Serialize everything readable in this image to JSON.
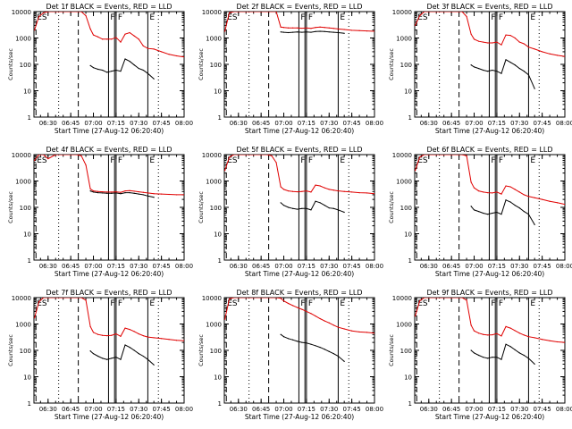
{
  "figure": {
    "background": "#ffffff",
    "axis_color": "#000000"
  },
  "common": {
    "xlabel": "Start Time (27-Aug-12 06:20:40)",
    "ylabel": "Counts/sec",
    "xticks": [
      "06:30",
      "06:45",
      "07:00",
      "07:15",
      "07:30",
      "07:45",
      "08:00"
    ],
    "yticks": [
      "1",
      "10",
      "100",
      "1000",
      "10000"
    ],
    "ylim": [
      1,
      10000
    ],
    "y_scale": "log",
    "xlim": [
      "06:20:40",
      "08:00"
    ],
    "marker_labels": [
      "ES",
      "F",
      "F",
      "E"
    ]
  },
  "chart_data": [
    {
      "type": "line",
      "title": "Det 1f BLACK = Events, RED = LLD",
      "x": [
        "06:21",
        "06:24",
        "06:27",
        "06:30",
        "06:35",
        "06:40",
        "06:45",
        "06:49",
        "06:52",
        "06:55",
        "06:58",
        "07:00",
        "07:03",
        "07:06",
        "07:09",
        "07:12",
        "07:15",
        "07:18",
        "07:21",
        "07:24",
        "07:27",
        "07:30",
        "07:33",
        "07:36",
        "07:40",
        "07:45",
        "07:50",
        "07:55",
        "08:00"
      ],
      "series": [
        {
          "name": "BLACK = Events",
          "color": "#000000",
          "values": [
            null,
            null,
            null,
            null,
            null,
            null,
            null,
            null,
            null,
            null,
            90,
            75,
            65,
            60,
            50,
            55,
            60,
            55,
            160,
            130,
            95,
            70,
            60,
            45,
            28,
            null,
            null,
            null,
            null
          ]
        },
        {
          "name": "RED = LLD",
          "color": "#e00000",
          "values": [
            2000,
            6500,
            9000,
            10000,
            10000,
            10000,
            10000,
            10000,
            10000,
            7000,
            2200,
            1300,
            1100,
            900,
            900,
            900,
            1050,
            700,
            1400,
            1600,
            1200,
            900,
            500,
            400,
            380,
            300,
            240,
            210,
            190
          ]
        }
      ],
      "vlines_dashed": [
        "06:22",
        "06:50"
      ],
      "vlines_dotted": [
        "06:37",
        "07:43"
      ],
      "vlines_solid": [
        "07:10",
        "07:14",
        "07:15",
        "07:36"
      ]
    },
    {
      "type": "line",
      "title": "Det 2f BLACK = Events, RED = LLD",
      "x": [
        "06:21",
        "06:24",
        "06:27",
        "06:30",
        "06:35",
        "06:40",
        "06:45",
        "06:49",
        "06:52",
        "06:55",
        "06:58",
        "07:00",
        "07:03",
        "07:06",
        "07:09",
        "07:12",
        "07:15",
        "07:18",
        "07:21",
        "07:24",
        "07:27",
        "07:30",
        "07:33",
        "07:36",
        "07:40",
        "07:45",
        "07:50",
        "07:55",
        "08:00"
      ],
      "series": [
        {
          "name": "BLACK = Events",
          "color": "#000000",
          "values": [
            null,
            null,
            null,
            null,
            null,
            null,
            null,
            null,
            null,
            null,
            1700,
            1650,
            1600,
            1650,
            1700,
            1650,
            1700,
            1650,
            1750,
            1800,
            1750,
            1700,
            1650,
            1600,
            1500,
            null,
            null,
            null,
            null
          ]
        },
        {
          "name": "RED = LLD",
          "color": "#e00000",
          "values": [
            1800,
            9000,
            10000,
            10000,
            10000,
            10000,
            10000,
            10000,
            10000,
            10000,
            2600,
            2500,
            2400,
            2400,
            2400,
            2350,
            2400,
            2300,
            2500,
            2600,
            2500,
            2400,
            2300,
            2200,
            2100,
            1950,
            1900,
            1850,
            1800
          ]
        }
      ],
      "vlines_dashed": [
        "06:22",
        "06:50"
      ],
      "vlines_dotted": [
        "06:37",
        "07:43"
      ],
      "vlines_solid": [
        "07:10",
        "07:14",
        "07:15",
        "07:36"
      ]
    },
    {
      "type": "line",
      "title": "Det 3f BLACK = Events, RED = LLD",
      "x": [
        "06:21",
        "06:24",
        "06:27",
        "06:30",
        "06:35",
        "06:40",
        "06:45",
        "06:49",
        "06:52",
        "06:55",
        "06:58",
        "07:00",
        "07:03",
        "07:06",
        "07:09",
        "07:12",
        "07:15",
        "07:18",
        "07:21",
        "07:24",
        "07:27",
        "07:30",
        "07:33",
        "07:36",
        "07:40",
        "07:45",
        "07:50",
        "07:55",
        "08:00"
      ],
      "series": [
        {
          "name": "BLACK = Events",
          "color": "#000000",
          "values": [
            null,
            null,
            null,
            null,
            null,
            null,
            null,
            null,
            null,
            null,
            95,
            80,
            70,
            60,
            55,
            60,
            55,
            45,
            150,
            120,
            95,
            70,
            55,
            40,
            12,
            null,
            null,
            null,
            null
          ]
        },
        {
          "name": "RED = LLD",
          "color": "#e00000",
          "values": [
            3000,
            7000,
            10000,
            10000,
            10000,
            10000,
            10000,
            10000,
            10000,
            6500,
            1400,
            900,
            750,
            700,
            650,
            650,
            700,
            550,
            1300,
            1250,
            1000,
            700,
            600,
            450,
            380,
            300,
            250,
            220,
            200
          ]
        }
      ],
      "vlines_dashed": [
        "06:22",
        "06:50"
      ],
      "vlines_dotted": [
        "06:37",
        "07:43"
      ],
      "vlines_solid": [
        "07:10",
        "07:14",
        "07:15",
        "07:36"
      ]
    },
    {
      "type": "line",
      "title": "Det 4f BLACK = Events, RED = LLD",
      "x": [
        "06:21",
        "06:24",
        "06:27",
        "06:30",
        "06:35",
        "06:40",
        "06:45",
        "06:49",
        "06:52",
        "06:55",
        "06:58",
        "07:00",
        "07:03",
        "07:06",
        "07:09",
        "07:12",
        "07:15",
        "07:18",
        "07:21",
        "07:24",
        "07:27",
        "07:30",
        "07:33",
        "07:36",
        "07:40",
        "07:45",
        "07:50",
        "07:55",
        "08:00"
      ],
      "series": [
        {
          "name": "BLACK = Events",
          "color": "#000000",
          "values": [
            null,
            null,
            null,
            null,
            null,
            null,
            null,
            null,
            null,
            null,
            420,
            380,
            360,
            350,
            340,
            340,
            350,
            330,
            360,
            360,
            340,
            320,
            300,
            270,
            240,
            null,
            null,
            null,
            null
          ]
        },
        {
          "name": "RED = LLD",
          "color": "#e00000",
          "values": [
            6000,
            10000,
            10000,
            7000,
            10000,
            10000,
            10000,
            10000,
            9000,
            4000,
            500,
            420,
            400,
            390,
            380,
            380,
            390,
            370,
            420,
            430,
            410,
            390,
            370,
            350,
            330,
            320,
            310,
            300,
            300
          ]
        }
      ],
      "vlines_dashed": [
        "06:22",
        "06:50"
      ],
      "vlines_dotted": [
        "06:37",
        "07:43"
      ],
      "vlines_solid": [
        "07:10",
        "07:14",
        "07:15",
        "07:36"
      ]
    },
    {
      "type": "line",
      "title": "Det 5f BLACK = Events, RED = LLD",
      "x": [
        "06:21",
        "06:24",
        "06:27",
        "06:30",
        "06:35",
        "06:40",
        "06:45",
        "06:49",
        "06:52",
        "06:55",
        "06:58",
        "07:00",
        "07:03",
        "07:06",
        "07:09",
        "07:12",
        "07:15",
        "07:18",
        "07:21",
        "07:24",
        "07:27",
        "07:30",
        "07:33",
        "07:36",
        "07:40",
        "07:45",
        "07:50",
        "07:55",
        "08:00"
      ],
      "series": [
        {
          "name": "BLACK = Events",
          "color": "#000000",
          "values": [
            null,
            null,
            null,
            null,
            null,
            null,
            null,
            null,
            null,
            null,
            150,
            120,
            100,
            90,
            85,
            90,
            90,
            80,
            170,
            150,
            120,
            95,
            90,
            80,
            65,
            null,
            null,
            null,
            null
          ]
        },
        {
          "name": "RED = LLD",
          "color": "#e00000",
          "values": [
            2500,
            8000,
            10000,
            10000,
            10000,
            10000,
            10000,
            10000,
            9000,
            5000,
            600,
            480,
            420,
            400,
            390,
            400,
            420,
            380,
            700,
            650,
            550,
            480,
            450,
            420,
            400,
            380,
            360,
            350,
            330
          ]
        }
      ],
      "vlines_dashed": [
        "06:22",
        "06:50"
      ],
      "vlines_dotted": [
        "06:37",
        "07:43"
      ],
      "vlines_solid": [
        "07:10",
        "07:14",
        "07:15",
        "07:36"
      ]
    },
    {
      "type": "line",
      "title": "Det 6f BLACK = Events, RED = LLD",
      "x": [
        "06:21",
        "06:24",
        "06:27",
        "06:30",
        "06:35",
        "06:40",
        "06:45",
        "06:49",
        "06:52",
        "06:55",
        "06:58",
        "07:00",
        "07:03",
        "07:06",
        "07:09",
        "07:12",
        "07:15",
        "07:18",
        "07:21",
        "07:24",
        "07:27",
        "07:30",
        "07:33",
        "07:36",
        "07:40",
        "07:45",
        "07:50",
        "07:55",
        "08:00"
      ],
      "series": [
        {
          "name": "BLACK = Events",
          "color": "#000000",
          "values": [
            null,
            null,
            null,
            null,
            null,
            null,
            null,
            null,
            null,
            null,
            110,
            80,
            70,
            60,
            55,
            60,
            65,
            55,
            190,
            160,
            120,
            95,
            70,
            55,
            22,
            null,
            null,
            null,
            null
          ]
        },
        {
          "name": "RED = LLD",
          "color": "#e00000",
          "values": [
            2500,
            8000,
            10000,
            10000,
            10000,
            10000,
            10000,
            10000,
            10000,
            9000,
            900,
            550,
            420,
            380,
            360,
            350,
            380,
            320,
            650,
            600,
            480,
            380,
            300,
            260,
            230,
            200,
            170,
            150,
            130
          ]
        }
      ],
      "vlines_dashed": [
        "06:22",
        "06:50"
      ],
      "vlines_dotted": [
        "06:37",
        "07:43"
      ],
      "vlines_solid": [
        "07:10",
        "07:14",
        "07:15",
        "07:36"
      ]
    },
    {
      "type": "line",
      "title": "Det 7f BLACK = Events, RED = LLD",
      "x": [
        "06:21",
        "06:24",
        "06:27",
        "06:30",
        "06:35",
        "06:40",
        "06:45",
        "06:49",
        "06:52",
        "06:55",
        "06:58",
        "07:00",
        "07:03",
        "07:06",
        "07:09",
        "07:12",
        "07:15",
        "07:18",
        "07:21",
        "07:24",
        "07:27",
        "07:30",
        "07:33",
        "07:36",
        "07:40",
        "07:45",
        "07:50",
        "07:55",
        "08:00"
      ],
      "series": [
        {
          "name": "BLACK = Events",
          "color": "#000000",
          "values": [
            null,
            null,
            null,
            null,
            null,
            null,
            null,
            null,
            null,
            null,
            95,
            75,
            60,
            50,
            45,
            50,
            55,
            45,
            160,
            130,
            100,
            75,
            60,
            45,
            28,
            null,
            null,
            null,
            null
          ]
        },
        {
          "name": "RED = LLD",
          "color": "#e00000",
          "values": [
            1700,
            7000,
            10000,
            10000,
            10000,
            10000,
            10000,
            10000,
            10000,
            8000,
            800,
            480,
            400,
            370,
            360,
            370,
            420,
            340,
            700,
            620,
            520,
            420,
            360,
            320,
            300,
            280,
            260,
            240,
            230
          ]
        }
      ],
      "vlines_dashed": [
        "06:22",
        "06:50"
      ],
      "vlines_dotted": [
        "06:37",
        "07:43"
      ],
      "vlines_solid": [
        "07:10",
        "07:14",
        "07:15",
        "07:36"
      ]
    },
    {
      "type": "line",
      "title": "Det 8f BLACK = Events, RED = LLD",
      "x": [
        "06:21",
        "06:24",
        "06:27",
        "06:30",
        "06:35",
        "06:40",
        "06:45",
        "06:49",
        "06:52",
        "06:55",
        "06:58",
        "07:00",
        "07:03",
        "07:06",
        "07:09",
        "07:12",
        "07:15",
        "07:18",
        "07:21",
        "07:24",
        "07:27",
        "07:30",
        "07:33",
        "07:36",
        "07:40",
        "07:45",
        "07:50",
        "07:55",
        "08:00"
      ],
      "series": [
        {
          "name": "BLACK = Events",
          "color": "#000000",
          "values": [
            null,
            null,
            null,
            null,
            null,
            null,
            null,
            null,
            null,
            null,
            400,
            330,
            280,
            250,
            220,
            200,
            190,
            170,
            150,
            130,
            110,
            90,
            75,
            60,
            38,
            null,
            null,
            null,
            null
          ]
        },
        {
          "name": "RED = LLD",
          "color": "#e00000",
          "values": [
            1500,
            9000,
            10000,
            10000,
            10000,
            10000,
            10000,
            10000,
            10000,
            10000,
            9500,
            7500,
            6000,
            5000,
            4200,
            3600,
            3000,
            2500,
            2000,
            1600,
            1300,
            1100,
            900,
            750,
            650,
            550,
            500,
            480,
            450
          ]
        }
      ],
      "vlines_dashed": [
        "06:22",
        "06:50"
      ],
      "vlines_dotted": [
        "06:37",
        "07:43"
      ],
      "vlines_solid": [
        "07:10",
        "07:14",
        "07:15",
        "07:36"
      ]
    },
    {
      "type": "line",
      "title": "Det 9f BLACK = Events, RED = LLD",
      "x": [
        "06:21",
        "06:24",
        "06:27",
        "06:30",
        "06:35",
        "06:40",
        "06:45",
        "06:49",
        "06:52",
        "06:55",
        "06:58",
        "07:00",
        "07:03",
        "07:06",
        "07:09",
        "07:12",
        "07:15",
        "07:18",
        "07:21",
        "07:24",
        "07:27",
        "07:30",
        "07:33",
        "07:36",
        "07:40",
        "07:45",
        "07:50",
        "07:55",
        "08:00"
      ],
      "series": [
        {
          "name": "BLACK = Events",
          "color": "#000000",
          "values": [
            null,
            null,
            null,
            null,
            null,
            null,
            null,
            null,
            null,
            null,
            100,
            80,
            65,
            55,
            50,
            55,
            55,
            45,
            170,
            140,
            105,
            80,
            65,
            50,
            30,
            null,
            null,
            null,
            null
          ]
        },
        {
          "name": "RED = LLD",
          "color": "#e00000",
          "values": [
            2000,
            7500,
            10000,
            10000,
            10000,
            10000,
            10000,
            10000,
            10000,
            8000,
            900,
            550,
            450,
            400,
            380,
            390,
            430,
            350,
            800,
            700,
            560,
            450,
            380,
            330,
            300,
            260,
            230,
            210,
            200
          ]
        }
      ],
      "vlines_dashed": [
        "06:22",
        "06:50"
      ],
      "vlines_dotted": [
        "06:37",
        "07:43"
      ],
      "vlines_solid": [
        "07:10",
        "07:14",
        "07:15",
        "07:36"
      ]
    }
  ]
}
